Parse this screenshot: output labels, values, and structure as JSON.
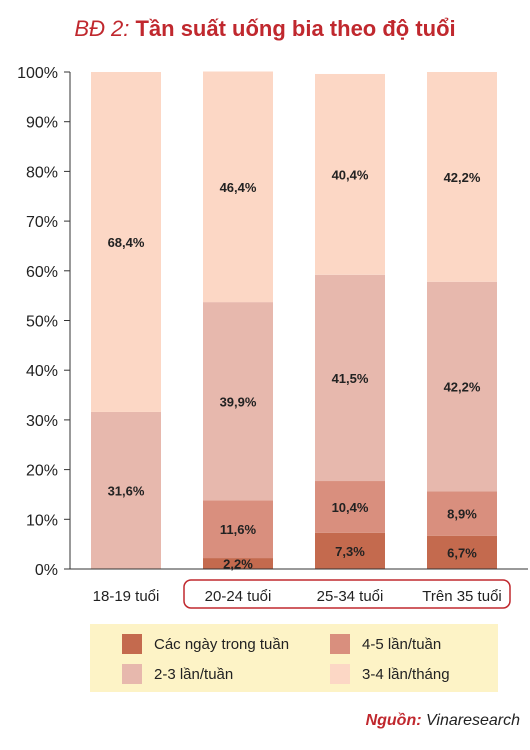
{
  "title_prefix": "BĐ 2:",
  "title_main": "Tần suất uống bia theo độ tuổi",
  "source_label": "Nguồn:",
  "source_value": "Vinaresearch",
  "chart_data": {
    "type": "bar",
    "stacked": true,
    "normalized": true,
    "categories": [
      "18-19 tuổi",
      "20-24 tuổi",
      "25-34 tuổi",
      "Trên 35 tuổi"
    ],
    "highlighted_categories": [
      "20-24 tuổi",
      "25-34 tuổi",
      "Trên 35 tuổi"
    ],
    "ylim": [
      0,
      100
    ],
    "yticks": [
      "0%",
      "10%",
      "20%",
      "30%",
      "40%",
      "50%",
      "60%",
      "70%",
      "80%",
      "90%",
      "100%"
    ],
    "series": [
      {
        "name": "Các ngày trong tuần",
        "color": "#c46a4e",
        "values": [
          0,
          2.2,
          7.3,
          6.7
        ],
        "labels": [
          "",
          "2,2%",
          "7,3%",
          "6,7%"
        ]
      },
      {
        "name": "4-5 lần/tuần",
        "color": "#d98f7e",
        "values": [
          0,
          11.6,
          10.4,
          8.9
        ],
        "labels": [
          "",
          "11,6%",
          "10,4%",
          "8,9%"
        ]
      },
      {
        "name": "2-3 lần/tuần",
        "color": "#e7b8ad",
        "values": [
          31.6,
          39.9,
          41.5,
          42.2
        ],
        "labels": [
          "31,6%",
          "39,9%",
          "41,5%",
          "42,2%"
        ]
      },
      {
        "name": "3-4 lần/tháng",
        "color": "#fcd7c5",
        "values": [
          68.4,
          46.4,
          40.4,
          42.2
        ],
        "labels": [
          "68,4%",
          "46,4%",
          "40,4%",
          "42,2%"
        ]
      }
    ],
    "legend_position": "bottom",
    "grid": false
  }
}
